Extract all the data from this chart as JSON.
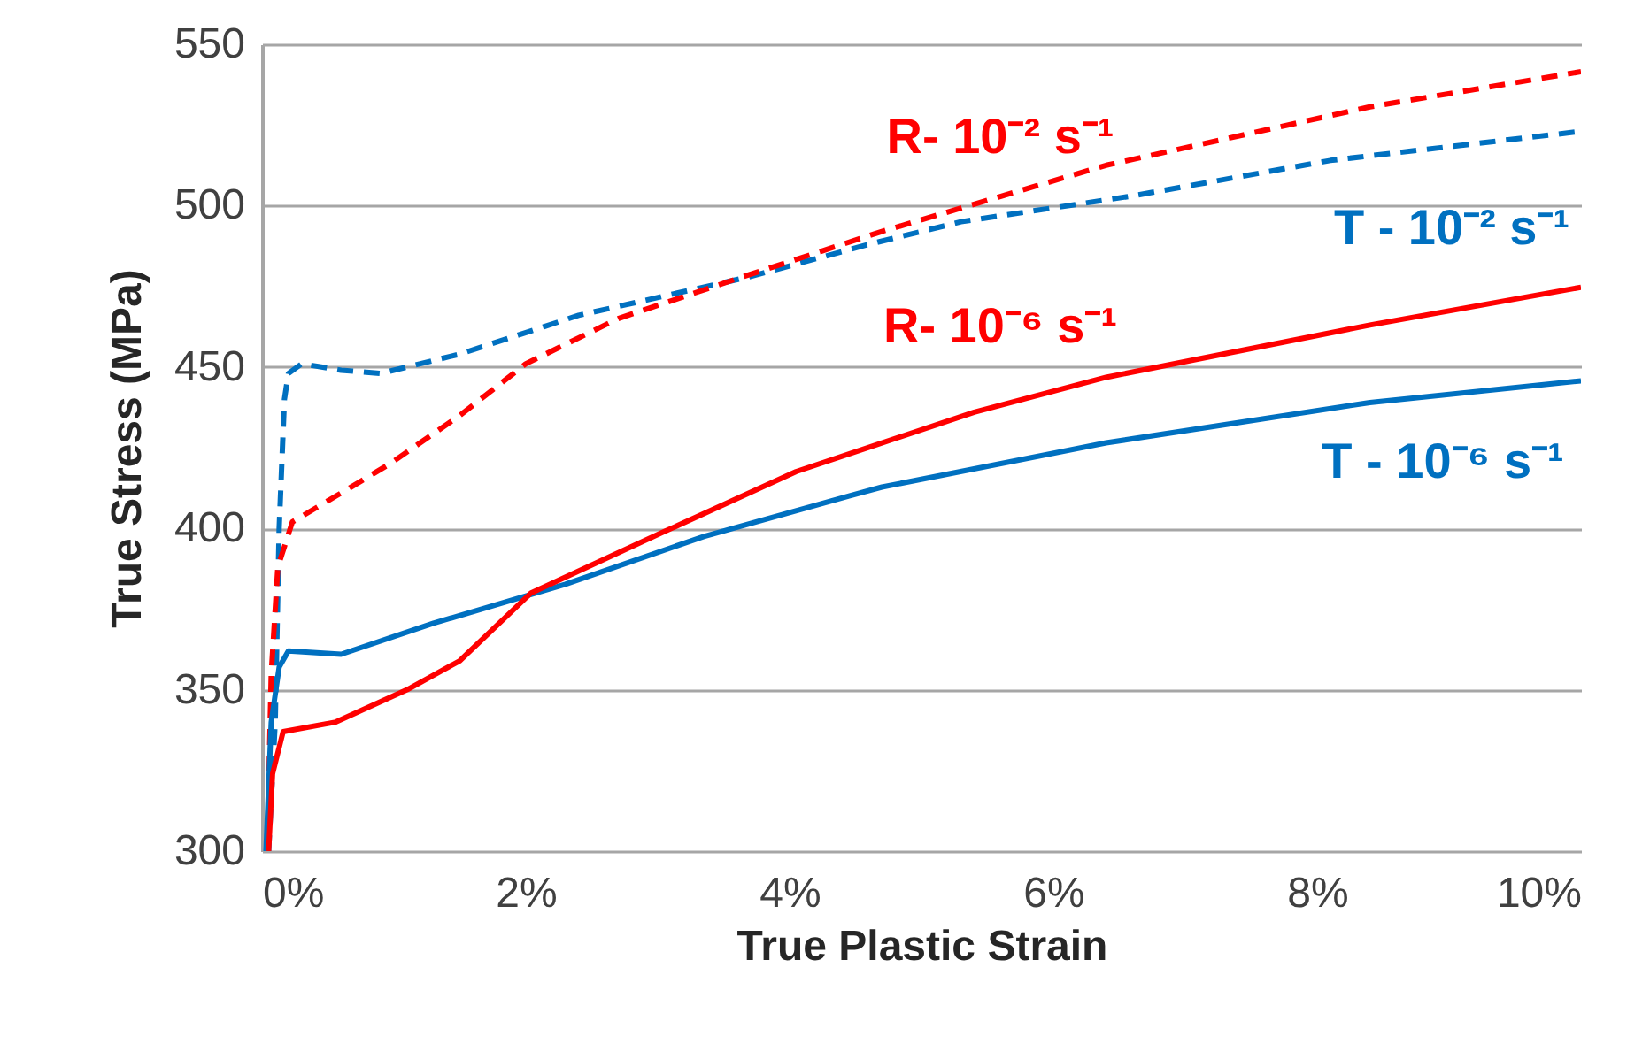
{
  "chart_data": {
    "type": "line",
    "xlabel": "True Plastic Strain",
    "ylabel": "True Stress (MPa)",
    "xlim": [
      0,
      10
    ],
    "ylim": [
      300,
      550
    ],
    "xticks": [
      {
        "value": 0,
        "label": "0%"
      },
      {
        "value": 2,
        "label": "2%"
      },
      {
        "value": 4,
        "label": "4%"
      },
      {
        "value": 6,
        "label": "6%"
      },
      {
        "value": 8,
        "label": "8%"
      },
      {
        "value": 10,
        "label": "10%"
      }
    ],
    "yticks": [
      300,
      350,
      400,
      450,
      500,
      550
    ],
    "grid": "y",
    "marker": "none",
    "series": [
      {
        "name": "T - 10⁻² s⁻¹",
        "color": "#0070c0",
        "line_style": "dashed",
        "x": [
          0.05,
          0.1,
          0.13,
          0.17,
          0.2,
          0.3,
          0.6,
          0.9,
          1.5,
          2.4,
          3.7,
          4.6,
          5.3,
          6.6,
          8.1,
          10
        ],
        "values": [
          300,
          340,
          400,
          440,
          448,
          451,
          449,
          448,
          454,
          466,
          478,
          488,
          495,
          503,
          514,
          523
        ]
      },
      {
        "name": "R- 10⁻² s⁻¹",
        "color": "#ff0000",
        "line_style": "dashed",
        "x": [
          0.04,
          0.07,
          0.12,
          0.23,
          0.56,
          0.97,
          1.5,
          2.0,
          2.7,
          3.65,
          4.7,
          6.4,
          8.4,
          10
        ],
        "values": [
          300,
          355,
          388,
          402,
          410,
          420,
          435,
          451,
          465,
          478,
          492,
          512.5,
          530.6,
          541.5
        ]
      },
      {
        "name": "T - 10⁻⁶ s⁻¹",
        "color": "#0070c0",
        "line_style": "solid",
        "x": [
          0.03,
          0.07,
          0.13,
          0.2,
          0.6,
          1.3,
          2.3,
          3.35,
          4.45,
          4.7,
          6.4,
          8.4,
          10
        ],
        "values": [
          300,
          340,
          357,
          362,
          361,
          370.6,
          382.7,
          397.5,
          410,
          412.8,
          426.5,
          439,
          445.7
        ]
      },
      {
        "name": "R- 10⁻⁶ s⁻¹",
        "color": "#ff0000",
        "line_style": "solid",
        "x": [
          0.05,
          0.08,
          0.16,
          0.56,
          1.1,
          1.5,
          2.04,
          3.05,
          4.05,
          5.4,
          6.4,
          8.4,
          10
        ],
        "values": [
          300,
          324,
          337,
          340,
          350,
          359,
          380,
          399,
          417.6,
          436,
          446.8,
          463,
          474.7
        ]
      }
    ]
  }
}
